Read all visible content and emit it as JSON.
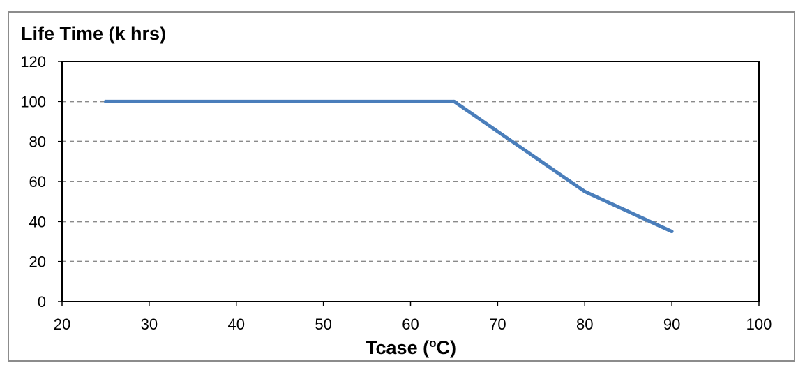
{
  "chart_data": {
    "type": "line",
    "title": "Life Time (k hrs)",
    "xlabel_main": "Tcase (",
    "xlabel_sup": "o",
    "xlabel_tail": "C)",
    "ylabel": "",
    "xlim": [
      20,
      100
    ],
    "ylim": [
      0,
      120
    ],
    "xticks": [
      20,
      30,
      40,
      50,
      60,
      70,
      80,
      90,
      100
    ],
    "yticks": [
      0,
      20,
      40,
      60,
      80,
      100,
      120
    ],
    "grid": "horizontal-dashed",
    "series": [
      {
        "color": "#4a7ebb",
        "points": [
          {
            "x": 25,
            "y": 100
          },
          {
            "x": 65,
            "y": 100
          },
          {
            "x": 80,
            "y": 55
          },
          {
            "x": 90,
            "y": 35
          }
        ]
      }
    ]
  }
}
